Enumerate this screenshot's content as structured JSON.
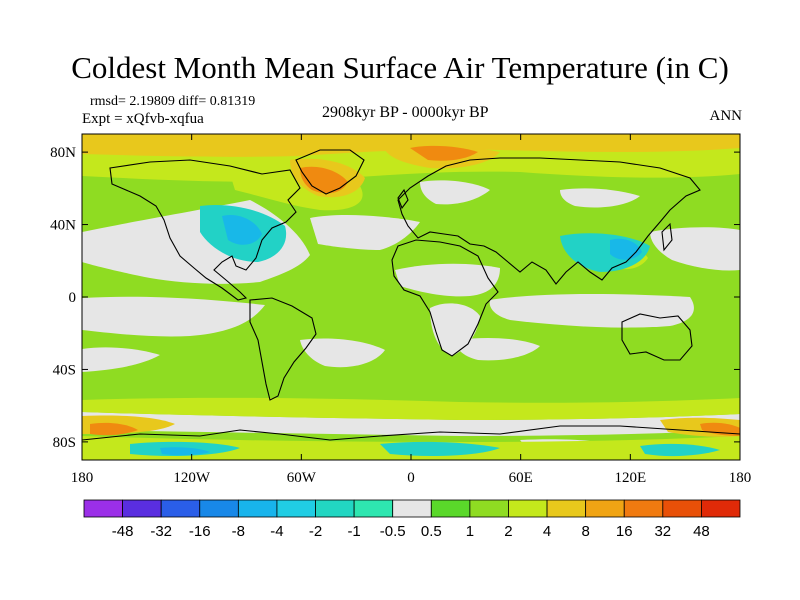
{
  "title": "Coldest Month Mean Surface Air Temperature (in C)",
  "stats_line": "rmsd= 2.19809 diff= 0.81319",
  "experiment_line": "Expt = xQfvb-xqfua",
  "period_line": "2908kyr BP - 0000kyr BP",
  "season_label": "ANN",
  "map": {
    "projection": "cylindrical-equidistant",
    "lon_range": [
      -180,
      180
    ],
    "lat_range": [
      -90,
      90
    ],
    "lat_ticks": [
      {
        "value": 80,
        "label": "80N"
      },
      {
        "value": 40,
        "label": "40N"
      },
      {
        "value": 0,
        "label": "0"
      },
      {
        "value": -40,
        "label": "40S"
      },
      {
        "value": -80,
        "label": "80S"
      }
    ],
    "lon_ticks": [
      {
        "value": -180,
        "label": "180"
      },
      {
        "value": -120,
        "label": "120W"
      },
      {
        "value": -60,
        "label": "60W"
      },
      {
        "value": 0,
        "label": "0"
      },
      {
        "value": 60,
        "label": "60E"
      },
      {
        "value": 120,
        "label": "120E"
      },
      {
        "value": 180,
        "label": "180"
      }
    ],
    "colors": {
      "background_field": "#8fdc22",
      "neutral_band": "#e6e6e6",
      "weak_warm": "#c4e81c",
      "warm": "#e8c81c",
      "strong_warm": "#f08a10",
      "weak_cold": "#22d2c6",
      "cold": "#18b8e8",
      "coastline": "#000000"
    }
  },
  "colorbar": {
    "labels": [
      "-48",
      "-32",
      "-16",
      "-8",
      "-4",
      "-2",
      "-1",
      "-0.5",
      "0.5",
      "1",
      "2",
      "4",
      "8",
      "16",
      "32",
      "48"
    ],
    "colors": [
      "#9b2fe8",
      "#5a2ee0",
      "#2a5ee8",
      "#1888e8",
      "#18b4ec",
      "#20cde4",
      "#22d6c2",
      "#2ee6b0",
      "#e6e6e6",
      "#5ad82a",
      "#8fdc22",
      "#c4e81c",
      "#e8c81c",
      "#f0a414",
      "#f07a10",
      "#e85008",
      "#e02a08"
    ]
  }
}
